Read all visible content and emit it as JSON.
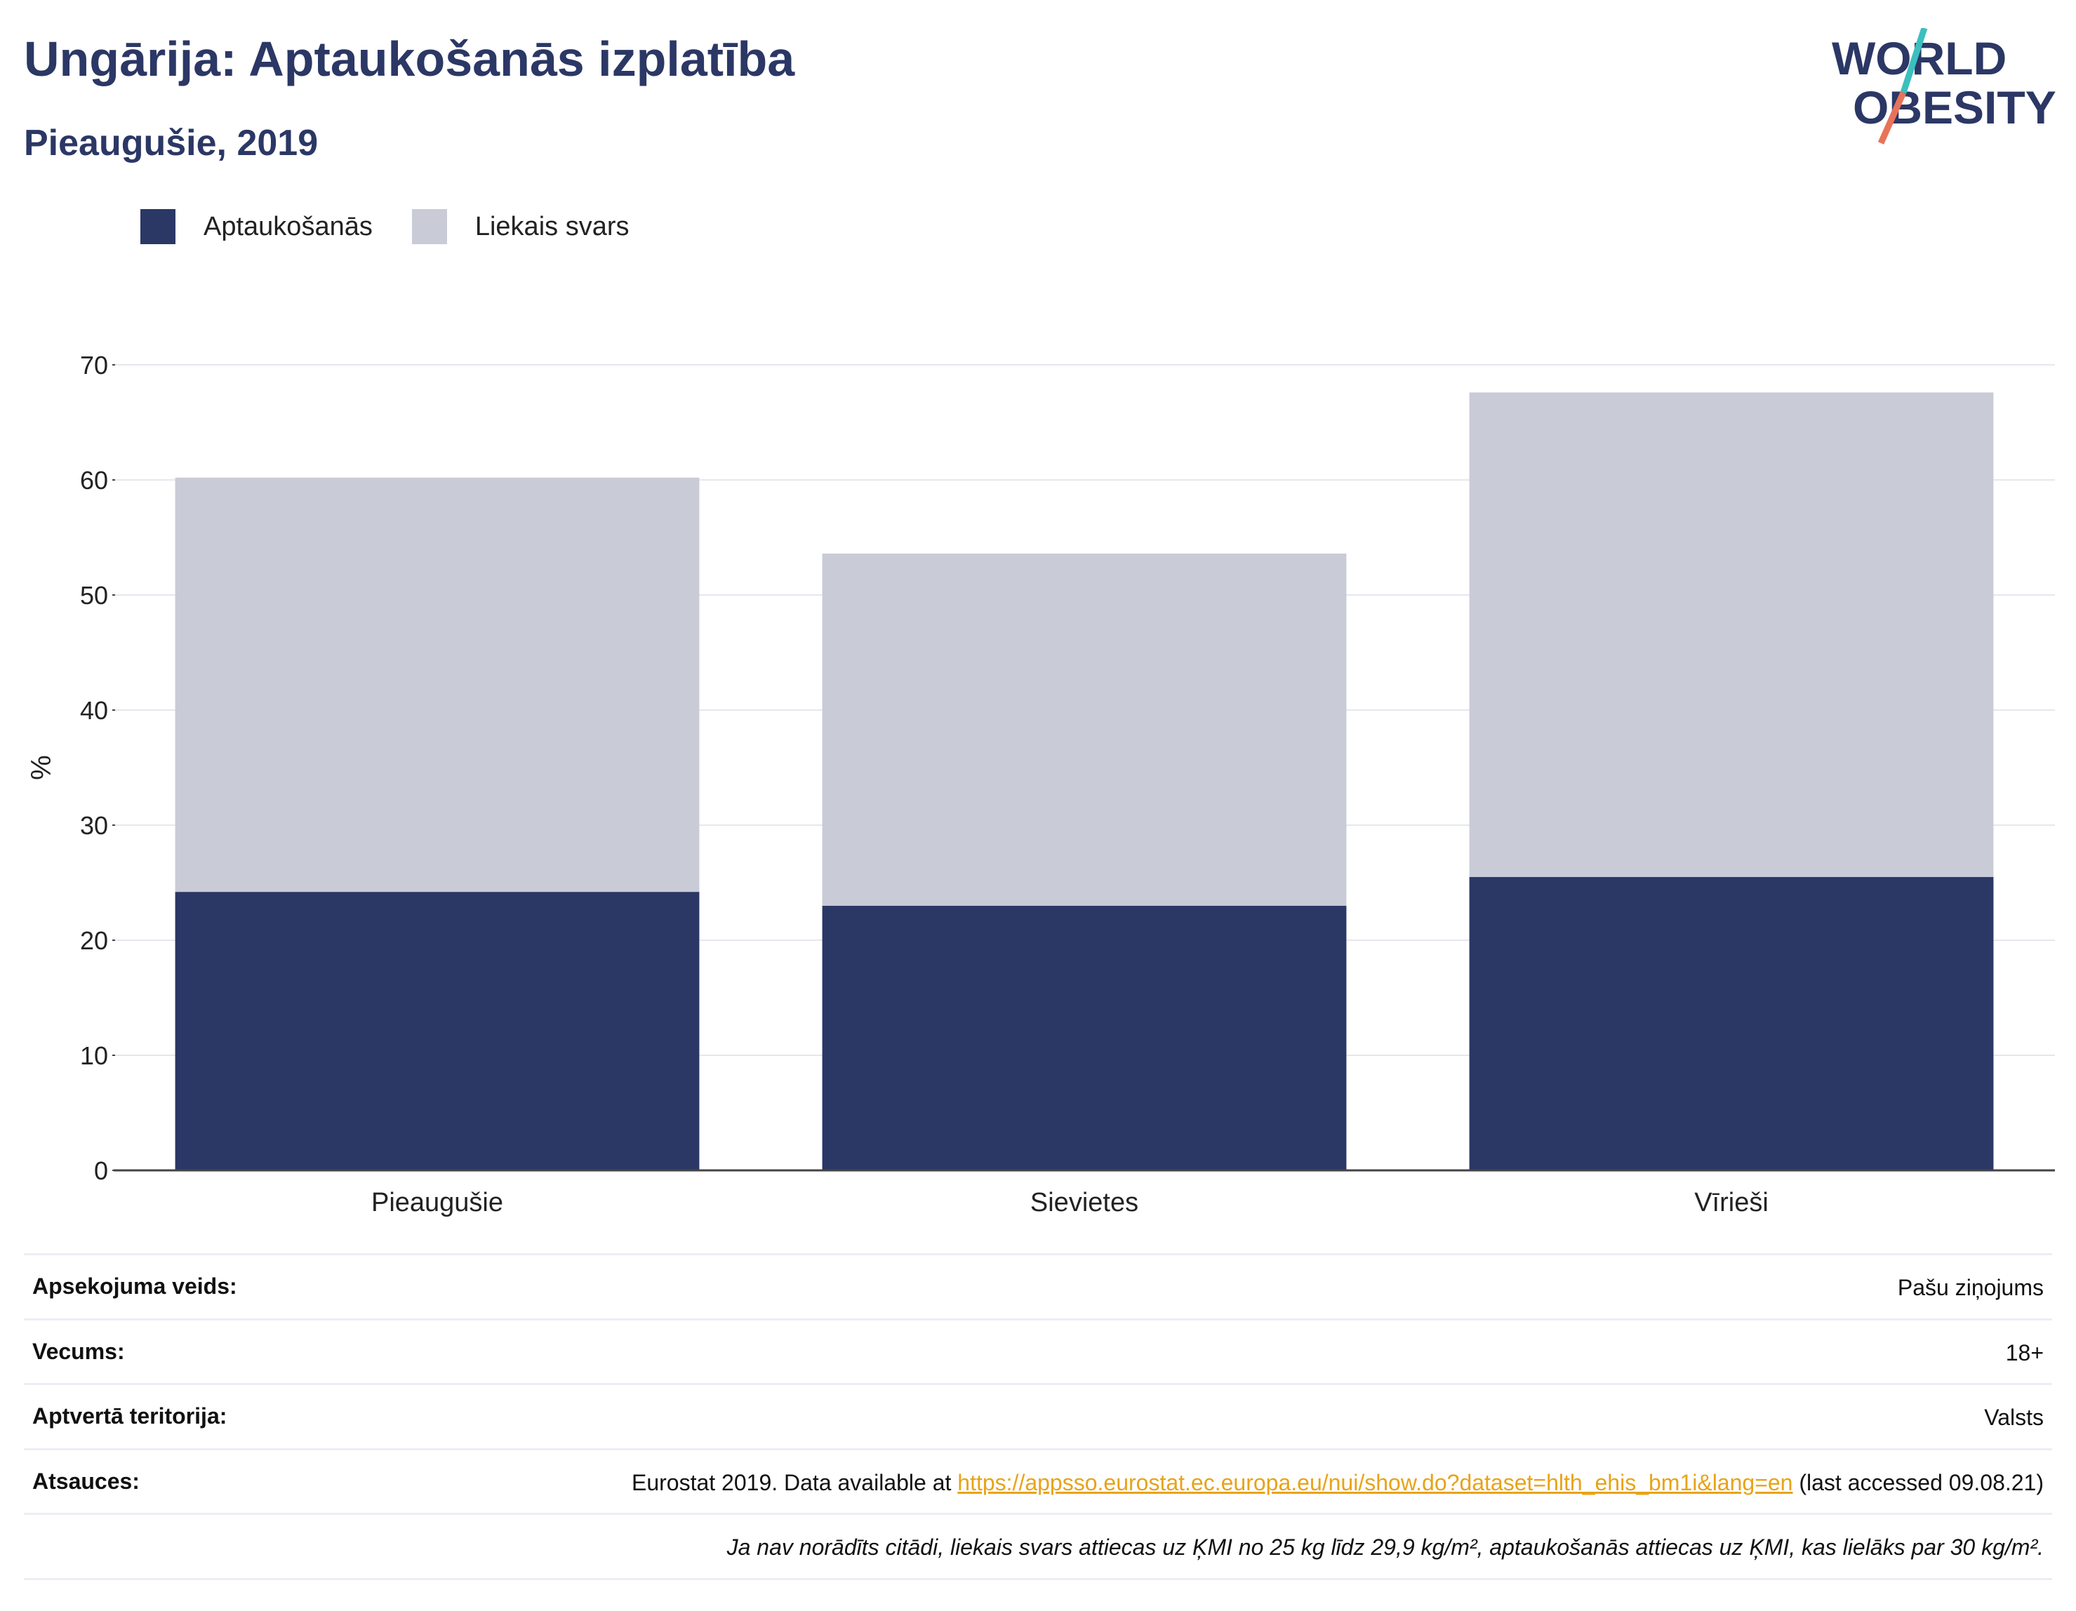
{
  "header": {
    "title": "Ungārija: Aptaukošanās izplatība",
    "subtitle": "Pieaugušie, 2019"
  },
  "logo": {
    "line1": "WORLD",
    "line2": "OBESITY",
    "icon": "world-obesity-logo",
    "colors": {
      "text": "#2b3765",
      "slash_top": "#3cbfbf",
      "slash_bottom": "#e8735a"
    }
  },
  "legend": {
    "items": [
      {
        "label": "Aptaukošanās",
        "color": "#2b3765"
      },
      {
        "label": "Liekais svars",
        "color": "#c9cbd7"
      }
    ]
  },
  "chart_data": {
    "type": "bar",
    "stacked": true,
    "categories": [
      "Pieaugušie",
      "Sievietes",
      "Vīrieši"
    ],
    "series": [
      {
        "name": "Aptaukošanās",
        "color": "#2b3765",
        "values": [
          24.2,
          23.0,
          25.5
        ]
      },
      {
        "name": "Liekais svars",
        "color": "#c9cbd7",
        "values": [
          36.0,
          30.6,
          42.1
        ]
      }
    ],
    "ylabel": "%",
    "ylim": [
      0,
      70
    ],
    "yticks": [
      0,
      10,
      20,
      30,
      40,
      50,
      60,
      70
    ],
    "grid": true,
    "legend_position": "top-left"
  },
  "meta": {
    "survey_label": "Apsekojuma veids:",
    "survey_value": "Pašu ziņojums",
    "age_label": "Vecums:",
    "age_value": "18+",
    "territory_label": "Aptvertā teritorija:",
    "territory_value": "Valsts",
    "refs_label": "Atsauces:",
    "refs_prefix": "Eurostat 2019. Data available at ",
    "refs_link": "https://appsso.eurostat.ec.europa.eu/nui/show.do?dataset=hlth_ehis_bm1i&lang=en",
    "refs_suffix": " (last accessed 09.08.21)",
    "note": "Ja nav norādīts citādi, liekais svars attiecas uz ĶMI no 25 kg līdz 29,9 kg/m², aptaukošanās attiecas uz ĶMI, kas lielāks par 30 kg/m²."
  }
}
